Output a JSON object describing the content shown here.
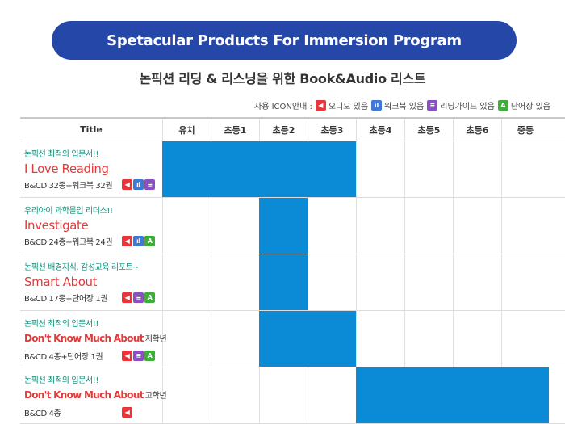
{
  "banner": {
    "title": "Spetacular Products For Immersion Program"
  },
  "subtitle": "논픽션 리딩 & 리스닝을 위한 Book&Audio 리스트",
  "legend": {
    "label": "사용 ICON안내 :",
    "items": [
      {
        "icon": "audio-icon",
        "letter": "◀",
        "text": "오디오 있음",
        "color": "#e8353b"
      },
      {
        "icon": "workbook-icon",
        "letter": "ıl",
        "text": "워크북 있음",
        "color": "#3f78d8"
      },
      {
        "icon": "reading-guide-icon",
        "letter": "≡",
        "text": "리딩가이드 있음",
        "color": "#8b4fc4"
      },
      {
        "icon": "vocabulary-icon",
        "letter": "A",
        "text": "단어장 있음",
        "color": "#3dae3a"
      }
    ]
  },
  "table": {
    "headers": [
      "Title",
      "유치",
      "초등1",
      "초등2",
      "초등3",
      "초등4",
      "초등5",
      "초등6",
      "중등"
    ],
    "rows": [
      {
        "tagline": "논픽션 최적의 입문서!!",
        "title": "I Love Reading",
        "grade_note": "",
        "desc": "B&CD 32종+워크북 32권",
        "icons": [
          "audio",
          "work",
          "guide"
        ],
        "levels": [
          true,
          true,
          true,
          true,
          false,
          false,
          false,
          false
        ]
      },
      {
        "tagline": "우리아이 과학몰입 리더스!!",
        "title": "Investigate",
        "grade_note": "",
        "desc": "B&CD 24종+워크북 24권",
        "icons": [
          "audio",
          "work",
          "vocab"
        ],
        "levels": [
          false,
          false,
          true,
          false,
          false,
          false,
          false,
          false
        ]
      },
      {
        "tagline": "논픽션 배경지식, 감성교육 리포트~",
        "title": "Smart About",
        "grade_note": "",
        "desc": "B&CD 17종+단어장 1권",
        "icons": [
          "audio",
          "guide",
          "vocab"
        ],
        "levels": [
          false,
          false,
          true,
          false,
          false,
          false,
          false,
          false
        ]
      },
      {
        "tagline": "논픽션 최적의 입문서!!",
        "title": "Don't Know Much About",
        "grade_note": "저학년",
        "desc": "B&CD 4종+단어장 1권",
        "icons": [
          "audio",
          "guide",
          "vocab"
        ],
        "levels": [
          false,
          false,
          true,
          true,
          false,
          false,
          false,
          false
        ]
      },
      {
        "tagline": "논픽션 최적의 입문서!!",
        "title": "Don't Know Much About",
        "grade_note": "고학년",
        "desc": "B&CD 4종",
        "icons": [
          "audio"
        ],
        "levels": [
          false,
          false,
          false,
          false,
          true,
          true,
          true,
          true
        ]
      }
    ]
  }
}
